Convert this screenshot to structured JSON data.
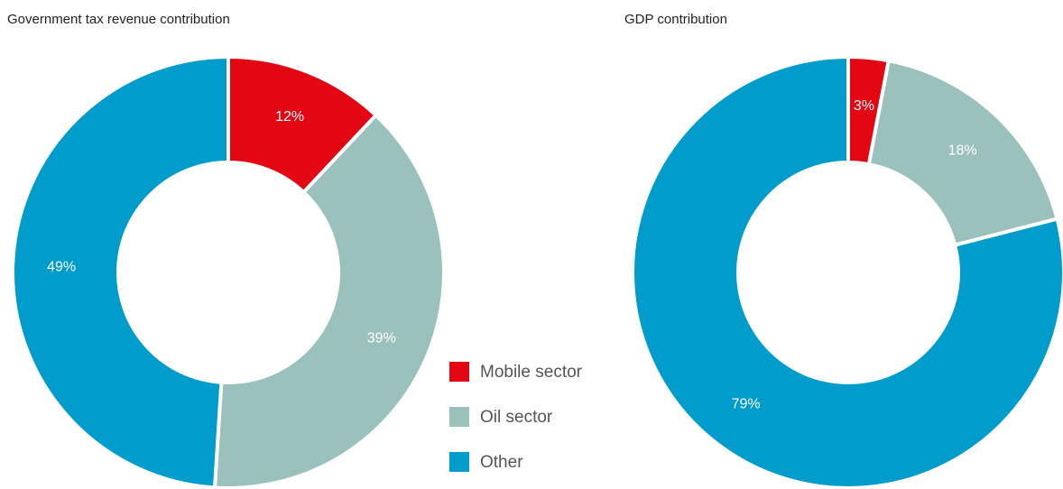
{
  "chart_data": [
    {
      "type": "donut",
      "title": "Government tax revenue contribution",
      "categories": [
        "Mobile sector",
        "Oil sector",
        "Other"
      ],
      "values": [
        12,
        39,
        49
      ],
      "value_labels": [
        "12%",
        "39%",
        "49%"
      ],
      "colors": [
        "#e30613",
        "#9bc1bd",
        "#009ccb"
      ],
      "legend": true
    },
    {
      "type": "donut",
      "title": "GDP contribution",
      "values": [
        3,
        18,
        79
      ],
      "value_labels": [
        "3%",
        "18%",
        "79%"
      ],
      "colors": [
        "#e30613",
        "#9bc1bd",
        "#009ccb"
      ]
    }
  ]
}
